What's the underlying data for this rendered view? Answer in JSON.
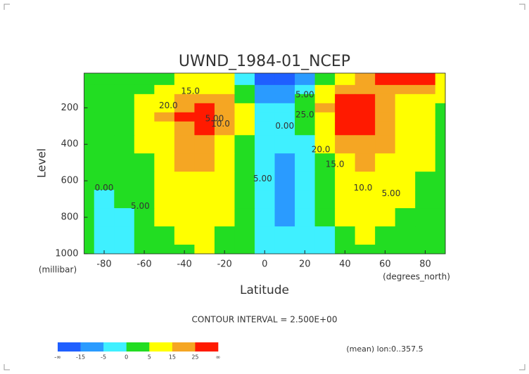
{
  "chart_data": {
    "type": "contour",
    "title": "UWND_1984-01_NCEP",
    "x_label": "Latitude",
    "x_unit": "(degrees_north)",
    "y_label": "Level",
    "y_unit": "(millibar)",
    "footer": "CONTOUR INTERVAL = 2.500E+00",
    "note": "(mean) lon:0..357.5",
    "xlim": [
      -90,
      90
    ],
    "xticks": [
      -80,
      -60,
      -40,
      -20,
      0,
      20,
      40,
      60,
      80
    ],
    "ylim": [
      1000,
      10
    ],
    "yticks": [
      200,
      400,
      600,
      800,
      1000
    ],
    "x": [
      -90,
      -80,
      -70,
      -60,
      -50,
      -40,
      -30,
      -20,
      -10,
      0,
      10,
      20,
      30,
      40,
      50,
      60,
      70,
      80,
      90
    ],
    "y": [
      50,
      100,
      150,
      200,
      250,
      300,
      400,
      500,
      600,
      700,
      800,
      900,
      1000
    ],
    "z": [
      [
        2,
        2,
        2,
        3,
        4,
        6,
        8,
        5,
        -5,
        -18,
        -20,
        -12,
        2,
        10,
        20,
        28,
        30,
        25,
        12
      ],
      [
        2,
        2,
        3,
        4,
        6,
        10,
        14,
        10,
        0,
        -10,
        -12,
        -5,
        6,
        18,
        22,
        20,
        20,
        15,
        8
      ],
      [
        2,
        2,
        3,
        5,
        10,
        18,
        22,
        16,
        3,
        -6,
        -8,
        0,
        12,
        26,
        28,
        20,
        14,
        10,
        5
      ],
      [
        1,
        2,
        3,
        6,
        14,
        24,
        28,
        20,
        5,
        -4,
        -5,
        2,
        16,
        32,
        32,
        22,
        14,
        8,
        4
      ],
      [
        1,
        2,
        3,
        6,
        15,
        26,
        28,
        20,
        5,
        -4,
        -4,
        1,
        14,
        30,
        31,
        22,
        14,
        8,
        4
      ],
      [
        1,
        1,
        3,
        6,
        14,
        24,
        26,
        18,
        5,
        -3,
        -4,
        0,
        12,
        27,
        28,
        20,
        12,
        8,
        4
      ],
      [
        1,
        1,
        2,
        5,
        12,
        20,
        22,
        14,
        4,
        -2,
        -5,
        -2,
        8,
        20,
        22,
        16,
        10,
        6,
        3
      ],
      [
        0,
        1,
        2,
        4,
        10,
        16,
        18,
        11,
        3,
        -2,
        -6,
        -4,
        4,
        14,
        16,
        12,
        8,
        5,
        2
      ],
      [
        0,
        0,
        1,
        3,
        8,
        13,
        14,
        9,
        2,
        -2,
        -6,
        -5,
        2,
        10,
        12,
        9,
        6,
        4,
        2
      ],
      [
        0,
        -1,
        0,
        2,
        6,
        10,
        11,
        7,
        2,
        -2,
        -6,
        -5,
        1,
        7,
        9,
        7,
        5,
        3,
        1
      ],
      [
        1,
        -1,
        -1,
        1,
        5,
        8,
        9,
        5,
        1,
        -2,
        -6,
        -4,
        0,
        5,
        7,
        6,
        4,
        2,
        1
      ],
      [
        1,
        -2,
        -2,
        0,
        3,
        6,
        7,
        4,
        0,
        -2,
        -5,
        -3,
        -1,
        3,
        5,
        4,
        3,
        2,
        1
      ],
      [
        1,
        -2,
        -2,
        1,
        2,
        4,
        5,
        3,
        0,
        -2,
        -4,
        -2,
        -1,
        1,
        2,
        3,
        2,
        1,
        1
      ]
    ],
    "colors": [
      "#1f5fff",
      "#2a9bff",
      "#3ff0ff",
      "#22dd22",
      "#ffff00",
      "#f5a623",
      "#ff1a00"
    ],
    "colorbar_ticks": [
      {
        "label": "-∞"
      },
      -15,
      -5,
      0,
      5,
      15,
      25,
      {
        "label": "∞"
      }
    ],
    "annotations": [
      {
        "text": "20.0",
        "x": -48,
        "y": 190
      },
      {
        "text": "15.0",
        "x": -37,
        "y": 110
      },
      {
        "text": "5.00",
        "x": -25,
        "y": 260
      },
      {
        "text": "10.0",
        "x": -22,
        "y": 290
      },
      {
        "text": "5.00",
        "x": -1,
        "y": 590
      },
      {
        "text": "0.00",
        "x": 10,
        "y": 300
      },
      {
        "text": "0.00",
        "x": -80,
        "y": 640
      },
      {
        "text": "5.00",
        "x": -62,
        "y": 740
      },
      {
        "text": "5.00",
        "x": 20,
        "y": 130
      },
      {
        "text": "25.0",
        "x": 20,
        "y": 240
      },
      {
        "text": "20.0",
        "x": 28,
        "y": 430
      },
      {
        "text": "15.0",
        "x": 35,
        "y": 510
      },
      {
        "text": "10.0",
        "x": 49,
        "y": 640
      },
      {
        "text": "5.00",
        "x": 63,
        "y": 670
      }
    ]
  }
}
